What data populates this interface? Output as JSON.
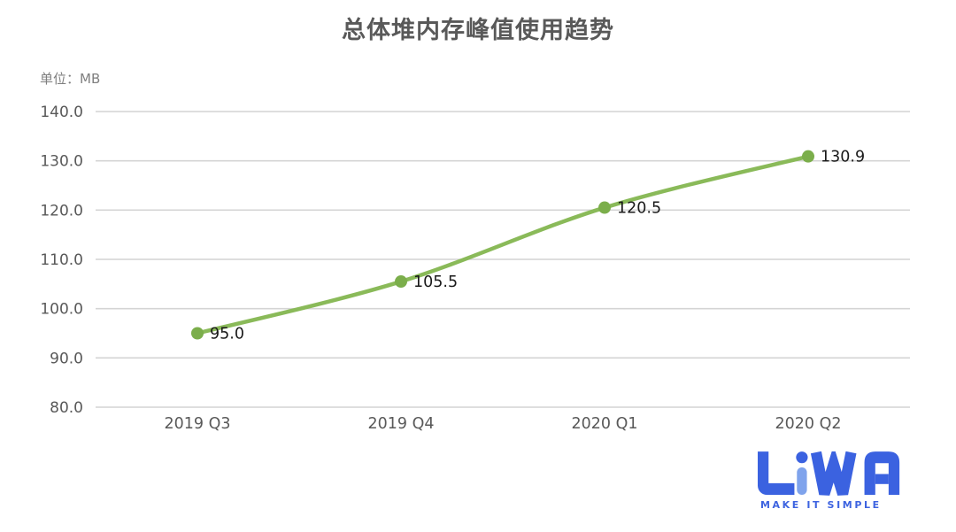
{
  "chart_data": {
    "type": "line",
    "title": "总体堆内存峰值使用趋势",
    "unit_label": "单位：MB",
    "categories": [
      "2019 Q3",
      "2019 Q4",
      "2020 Q1",
      "2020 Q2"
    ],
    "values": [
      95.0,
      105.5,
      120.5,
      130.9
    ],
    "data_labels": [
      "95.0",
      "105.5",
      "120.5",
      "130.9"
    ],
    "ylim": [
      80,
      140
    ],
    "ytick_step": 10,
    "ytick_labels": [
      "80.0",
      "90.0",
      "100.0",
      "110.0",
      "120.0",
      "130.0",
      "140.0"
    ],
    "xlabel": "",
    "ylabel": "单位：MB",
    "grid": true,
    "legend": "none",
    "colors": {
      "line": "#8aba59",
      "point": "#7bae4b",
      "grid": "#d4d4d4",
      "axis_text": "#595959",
      "label_text": "#1a1a1a",
      "title_text": "#595959",
      "unit_text": "#7f7f7f"
    }
  },
  "logo": {
    "brand": "LiWA",
    "tagline": "MAKE IT SIMPLE",
    "colors": {
      "primary": "#3b62e0",
      "accent": "#7fa3ec"
    }
  }
}
